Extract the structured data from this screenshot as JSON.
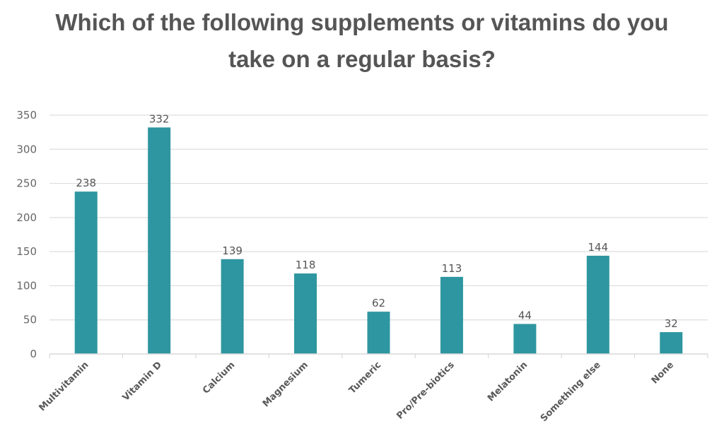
{
  "chart_data": {
    "type": "bar",
    "title_lines": [
      "Which of the following supplements or vitamins do you",
      "take on a regular basis?"
    ],
    "categories": [
      "Multivitamin",
      "Vitamin D",
      "Calcium",
      "Magnesium",
      "Tumeric",
      "Pro/Pre-biotics",
      "Melatonin",
      "Something else",
      "None"
    ],
    "values": [
      238,
      332,
      139,
      118,
      62,
      113,
      44,
      144,
      32
    ],
    "data_labels": [
      "238",
      "332",
      "139",
      "118",
      "62",
      "113",
      "44",
      "144",
      "32"
    ],
    "xlabel": "",
    "ylabel": "",
    "ylim": [
      0,
      350
    ],
    "yticks": [
      0,
      50,
      100,
      150,
      200,
      250,
      300,
      350
    ],
    "ytick_labels": [
      "0",
      "50",
      "100",
      "150",
      "200",
      "250",
      "300",
      "350"
    ],
    "grid": true,
    "legend": "none",
    "bar_color": "#2E96A0",
    "grid_color": "#DDDDDD"
  }
}
